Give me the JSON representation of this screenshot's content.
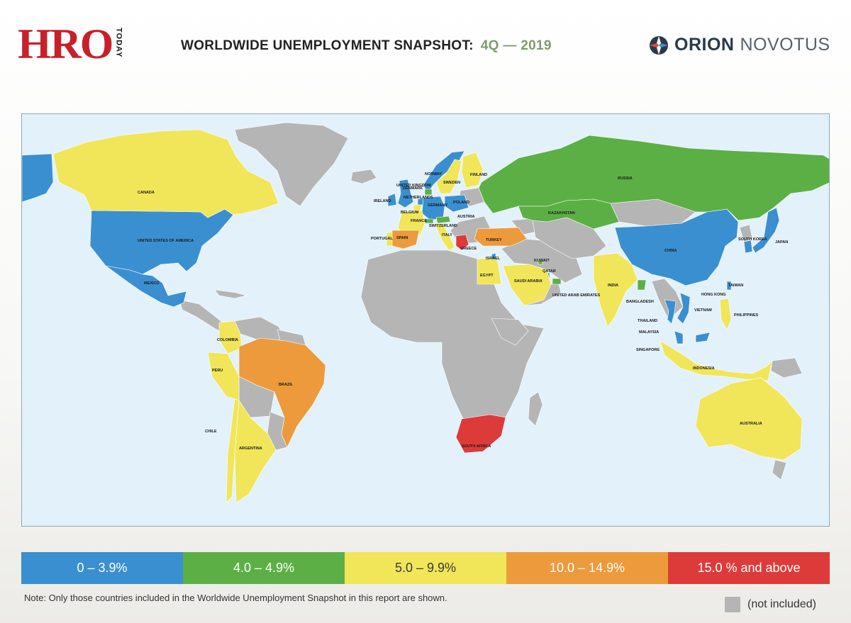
{
  "header": {
    "logo_text": "HRO",
    "logo_sub": "TODAY",
    "title": "WORLDWIDE UNEMPLOYMENT SNAPSHOT:",
    "period": "4Q — 2019",
    "brand_primary": "ORION",
    "brand_secondary": "NOVOTUS"
  },
  "colors": {
    "ocean": "#e3f1fb",
    "band_0": "#3a8fd0",
    "band_1": "#5caf45",
    "band_2": "#f1e55a",
    "band_3": "#ec9a3b",
    "band_4": "#dc3b3a",
    "not_included": "#b5b5b5",
    "logo_red": "#c8202a",
    "period_green": "#7f9a6c"
  },
  "map": {
    "countries": [
      {
        "name": "CANADA",
        "band": 2
      },
      {
        "name": "UNITED STATES OF AMERICA",
        "band": 0
      },
      {
        "name": "MEXICO",
        "band": 0
      },
      {
        "name": "COLOMBIA",
        "band": 2
      },
      {
        "name": "PERU",
        "band": 2
      },
      {
        "name": "BRAZIL",
        "band": 3
      },
      {
        "name": "CHILE",
        "band": 2
      },
      {
        "name": "ARGENTINA",
        "band": 2
      },
      {
        "name": "IRELAND",
        "band": 0
      },
      {
        "name": "UNITED KINGDOM",
        "band": 0
      },
      {
        "name": "NORWAY",
        "band": 0
      },
      {
        "name": "DENMARK",
        "band": 1
      },
      {
        "name": "NETHERLANDS",
        "band": 0
      },
      {
        "name": "BELGIUM",
        "band": 2
      },
      {
        "name": "GERMANY",
        "band": 0
      },
      {
        "name": "FRANCE",
        "band": 2
      },
      {
        "name": "SWITZERLAND",
        "band": 1
      },
      {
        "name": "AUSTRIA",
        "band": 1
      },
      {
        "name": "SWEDEN",
        "band": 2
      },
      {
        "name": "FINLAND",
        "band": 2
      },
      {
        "name": "POLAND",
        "band": 0
      },
      {
        "name": "ITALY",
        "band": 2
      },
      {
        "name": "PORTUGAL",
        "band": 2
      },
      {
        "name": "SPAIN",
        "band": 3
      },
      {
        "name": "GREECE",
        "band": 4
      },
      {
        "name": "TURKEY",
        "band": 3
      },
      {
        "name": "RUSSIA",
        "band": 1
      },
      {
        "name": "KAZAKHSTAN",
        "band": 1
      },
      {
        "name": "ISRAEL",
        "band": 0
      },
      {
        "name": "EGYPT",
        "band": 2
      },
      {
        "name": "SAUDI ARABIA",
        "band": 2
      },
      {
        "name": "KUWAIT",
        "band": 1
      },
      {
        "name": "QATAR",
        "band": 0
      },
      {
        "name": "UNITED ARAB EMIRATES",
        "band": 1
      },
      {
        "name": "SOUTH AFRICA",
        "band": 4
      },
      {
        "name": "INDIA",
        "band": 2
      },
      {
        "name": "BANGLADESH",
        "band": 1
      },
      {
        "name": "CHINA",
        "band": 0
      },
      {
        "name": "SOUTH KOREA",
        "band": 0
      },
      {
        "name": "JAPAN",
        "band": 0
      },
      {
        "name": "HONG KONG",
        "band": 0
      },
      {
        "name": "TAIWAN",
        "band": 0
      },
      {
        "name": "THAILAND",
        "band": 0
      },
      {
        "name": "VIETNAM",
        "band": 0
      },
      {
        "name": "PHILIPPINES",
        "band": 2
      },
      {
        "name": "MALAYSIA",
        "band": 0
      },
      {
        "name": "SINGAPORE",
        "band": 0
      },
      {
        "name": "INDONESIA",
        "band": 2
      },
      {
        "name": "AUSTRALIA",
        "band": 2
      }
    ]
  },
  "legend": {
    "items": [
      {
        "label": "0 – 3.9%"
      },
      {
        "label": "4.0 – 4.9%"
      },
      {
        "label": "5.0 – 9.9%"
      },
      {
        "label": "10.0 – 14.9%"
      },
      {
        "label": "15.0 % and above"
      }
    ],
    "not_included_label": "(not included)"
  },
  "note": "Note:  Only those countries included in the Worldwide Unemployment Snapshot in this report are shown."
}
